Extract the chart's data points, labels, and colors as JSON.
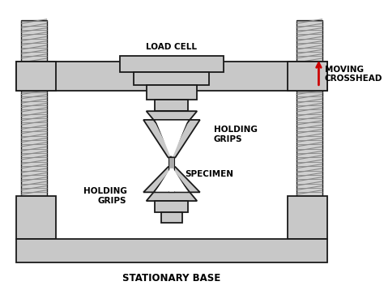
{
  "bg_color": "#ffffff",
  "gray_fill": "#c8c8c8",
  "dark_outline": "#1a1a1a",
  "title": "STATIONARY BASE",
  "label_load_cell": "LOAD CELL",
  "label_moving_crosshead": "MOVING\nCROSSHEAD",
  "label_holding_grips_top": "HOLDING\nGRIPS",
  "label_holding_grips_bot": "HOLDING\nGRIPS",
  "label_specimen": "SPECIMEN",
  "arrow_color": "#cc0000",
  "text_color": "#000000",
  "font_size_labels": 7.5,
  "font_size_base": 8.5
}
